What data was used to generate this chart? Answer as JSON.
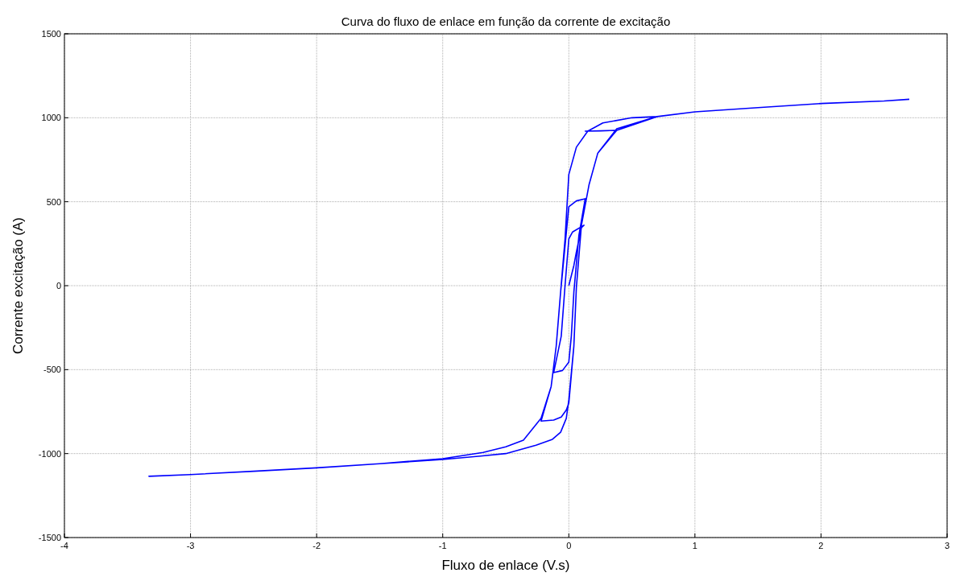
{
  "chart_data": {
    "type": "line",
    "title": "Curva do fluxo de enlace em função da corrente de excitação",
    "xlabel": "Fluxo de enlace (V.s)",
    "ylabel": "Corrente excitação (A)",
    "xlim": [
      -4,
      3
    ],
    "ylim": [
      -1500,
      1500
    ],
    "xticks": [
      -4,
      -3,
      -2,
      -1,
      0,
      1,
      2,
      3
    ],
    "yticks": [
      -1500,
      -1000,
      -500,
      0,
      500,
      1000,
      1500
    ],
    "grid": true,
    "marker": "none",
    "line_style": "solid",
    "series": [
      {
        "color": "#0000ff",
        "x": [
          0,
          0.04,
          0.06,
          0.1,
          0.12,
          0.03,
          0,
          -0.03,
          -0.06,
          -0.12,
          -0.05,
          0,
          0.02,
          0.04,
          0.08,
          0.13,
          0.06,
          0,
          -0.065,
          -0.1,
          -0.14,
          -0.22,
          -0.12,
          -0.06,
          -0.02,
          0,
          0.04,
          0.06,
          0.1,
          0.16,
          0.23,
          0.38,
          0.25,
          0.13,
          0.38,
          0.7,
          0.5,
          0.27,
          0.15,
          0.06,
          0,
          -0.03,
          -0.065,
          -0.1,
          -0.14,
          -0.22,
          -0.36,
          -0.5,
          -0.68,
          -1,
          -1.5,
          -2,
          -2.5,
          -3,
          -3.33,
          -3,
          -2.5,
          -2,
          -1.5,
          -1,
          -0.7,
          -0.5,
          -0.26,
          -0.13,
          -0.065,
          -0.02,
          0,
          0.04,
          0.06,
          0.1,
          0.16,
          0.23,
          0.38,
          0.7,
          1,
          1.5,
          2,
          2.5,
          2.7
        ],
        "values": [
          0,
          120,
          200,
          345,
          360,
          320,
          278,
          0,
          -300,
          -518,
          -505,
          -455,
          -300,
          -38,
          300,
          518,
          505,
          470,
          -38,
          -360,
          -600,
          -806,
          -800,
          -782,
          -740,
          -700,
          -360,
          -10,
          360,
          600,
          790,
          925,
          922,
          920,
          925,
          1007,
          1000,
          969,
          920,
          825,
          662,
          278,
          -38,
          -360,
          -600,
          -790,
          -920,
          -960,
          -993,
          -1030,
          -1060,
          -1085,
          -1105,
          -1125,
          -1135,
          -1125,
          -1105,
          -1085,
          -1060,
          -1035,
          -1015,
          -1000,
          -950,
          -915,
          -873,
          -790,
          -680,
          -360,
          -10,
          360,
          600,
          790,
          935,
          1007,
          1035,
          1060,
          1085,
          1100,
          1110
        ]
      }
    ]
  }
}
